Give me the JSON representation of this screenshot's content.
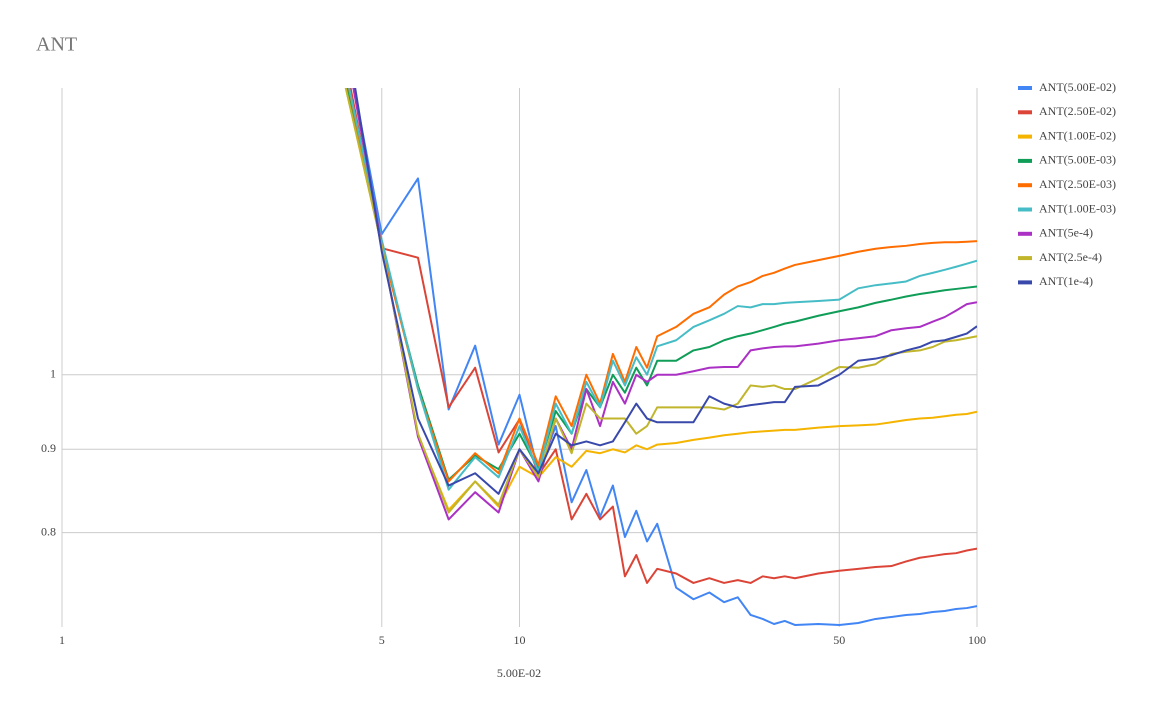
{
  "chart_data": {
    "type": "line",
    "title": "ANT",
    "x_label": "5.00E-02",
    "x": [
      4,
      5,
      6,
      7,
      8,
      9,
      10,
      11,
      12,
      13,
      14,
      15,
      16,
      17,
      18,
      19,
      20,
      22,
      24,
      26,
      28,
      30,
      32,
      34,
      36,
      38,
      40,
      45,
      50,
      55,
      60,
      65,
      70,
      75,
      80,
      85,
      90,
      95,
      100
    ],
    "xlim": [
      1,
      100
    ],
    "xticks": [
      1,
      5,
      10,
      50,
      100
    ],
    "xlog": true,
    "ylim": [
      0.7,
      1.5
    ],
    "yticks": [
      0.8,
      0.9,
      1
    ],
    "ylog": true,
    "grid": true,
    "legend": "right",
    "series": [
      {
        "name": "ANT(5.00E-02)",
        "color": "#4285f4",
        "values": [
          1.7,
          1.22,
          1.32,
          0.952,
          1.042,
          0.906,
          0.972,
          0.871,
          0.93,
          0.835,
          0.874,
          0.818,
          0.855,
          0.795,
          0.825,
          0.79,
          0.81,
          0.74,
          0.728,
          0.735,
          0.725,
          0.73,
          0.712,
          0.708,
          0.703,
          0.706,
          0.702,
          0.703,
          0.702,
          0.704,
          0.708,
          0.71,
          0.712,
          0.713,
          0.715,
          0.716,
          0.718,
          0.719,
          0.721
        ]
      },
      {
        "name": "ANT(2.50E-02)",
        "color": "#db4437",
        "values": [
          1.65,
          1.196,
          1.18,
          0.955,
          1.01,
          0.896,
          0.939,
          0.868,
          0.9,
          0.815,
          0.845,
          0.815,
          0.83,
          0.752,
          0.775,
          0.745,
          0.76,
          0.755,
          0.745,
          0.75,
          0.745,
          0.748,
          0.745,
          0.752,
          0.75,
          0.752,
          0.75,
          0.755,
          0.758,
          0.76,
          0.762,
          0.763,
          0.768,
          0.772,
          0.774,
          0.776,
          0.777,
          0.78,
          0.782
        ]
      },
      {
        "name": "ANT(1.00E-02)",
        "color": "#f4b400",
        "values": [
          1.58,
          1.2,
          0.918,
          0.826,
          0.86,
          0.83,
          0.878,
          0.865,
          0.89,
          0.878,
          0.898,
          0.895,
          0.9,
          0.896,
          0.905,
          0.9,
          0.906,
          0.908,
          0.912,
          0.915,
          0.918,
          0.92,
          0.922,
          0.923,
          0.924,
          0.925,
          0.925,
          0.928,
          0.93,
          0.931,
          0.932,
          0.935,
          0.938,
          0.94,
          0.941,
          0.943,
          0.945,
          0.946,
          0.949
        ]
      },
      {
        "name": "ANT(5.00E-03)",
        "color": "#0f9d58",
        "values": [
          1.6,
          1.2,
          0.985,
          0.862,
          0.892,
          0.875,
          0.92,
          0.875,
          0.95,
          0.92,
          0.98,
          0.955,
          1.0,
          0.975,
          1.01,
          0.985,
          1.02,
          1.02,
          1.035,
          1.04,
          1.05,
          1.056,
          1.06,
          1.065,
          1.07,
          1.075,
          1.078,
          1.087,
          1.094,
          1.1,
          1.107,
          1.112,
          1.117,
          1.121,
          1.124,
          1.127,
          1.129,
          1.131,
          1.133
        ]
      },
      {
        "name": "ANT(2.50E-03)",
        "color": "#ff6d01",
        "values": [
          1.62,
          1.2,
          0.98,
          0.86,
          0.895,
          0.87,
          0.94,
          0.88,
          0.97,
          0.93,
          1.0,
          0.96,
          1.03,
          0.99,
          1.04,
          1.01,
          1.056,
          1.07,
          1.09,
          1.1,
          1.12,
          1.133,
          1.14,
          1.15,
          1.155,
          1.162,
          1.168,
          1.176,
          1.183,
          1.19,
          1.195,
          1.198,
          1.2,
          1.203,
          1.205,
          1.206,
          1.206,
          1.207,
          1.208
        ]
      },
      {
        "name": "ANT(1.00E-03)",
        "color": "#46bdc6",
        "values": [
          1.62,
          1.21,
          0.98,
          0.85,
          0.89,
          0.865,
          0.93,
          0.872,
          0.96,
          0.92,
          0.99,
          0.955,
          1.02,
          0.985,
          1.025,
          1.0,
          1.041,
          1.05,
          1.07,
          1.08,
          1.09,
          1.102,
          1.1,
          1.105,
          1.105,
          1.107,
          1.108,
          1.11,
          1.112,
          1.13,
          1.135,
          1.138,
          1.141,
          1.15,
          1.155,
          1.16,
          1.165,
          1.17,
          1.175
        ]
      },
      {
        "name": "ANT(5e-4)",
        "color": "#ab30c4",
        "values": [
          1.7,
          1.2,
          0.916,
          0.815,
          0.847,
          0.823,
          0.9,
          0.86,
          0.94,
          0.9,
          0.98,
          0.93,
          0.99,
          0.96,
          1.0,
          0.99,
          1.0,
          1.0,
          1.005,
          1.01,
          1.011,
          1.011,
          1.035,
          1.038,
          1.04,
          1.041,
          1.041,
          1.045,
          1.05,
          1.053,
          1.056,
          1.065,
          1.068,
          1.07,
          1.078,
          1.085,
          1.095,
          1.105,
          1.108
        ]
      },
      {
        "name": "ANT(2.5e-4)",
        "color": "#c0b52b",
        "values": [
          1.58,
          1.2,
          0.92,
          0.823,
          0.86,
          0.832,
          0.9,
          0.865,
          0.94,
          0.895,
          0.96,
          0.94,
          0.94,
          0.94,
          0.92,
          0.93,
          0.955,
          0.955,
          0.955,
          0.955,
          0.952,
          0.96,
          0.985,
          0.983,
          0.985,
          0.98,
          0.98,
          0.995,
          1.011,
          1.01,
          1.015,
          1.03,
          1.033,
          1.035,
          1.04,
          1.048,
          1.05,
          1.053,
          1.056
        ]
      },
      {
        "name": "ANT(1e-4)",
        "color": "#3949ab",
        "values": [
          1.75,
          1.19,
          0.94,
          0.855,
          0.87,
          0.845,
          0.9,
          0.87,
          0.92,
          0.905,
          0.91,
          0.905,
          0.91,
          0.935,
          0.96,
          0.94,
          0.935,
          0.935,
          0.935,
          0.97,
          0.96,
          0.955,
          0.958,
          0.96,
          0.962,
          0.962,
          0.983,
          0.985,
          1.0,
          1.02,
          1.023,
          1.028,
          1.035,
          1.04,
          1.048,
          1.05,
          1.055,
          1.06,
          1.071
        ]
      }
    ]
  }
}
